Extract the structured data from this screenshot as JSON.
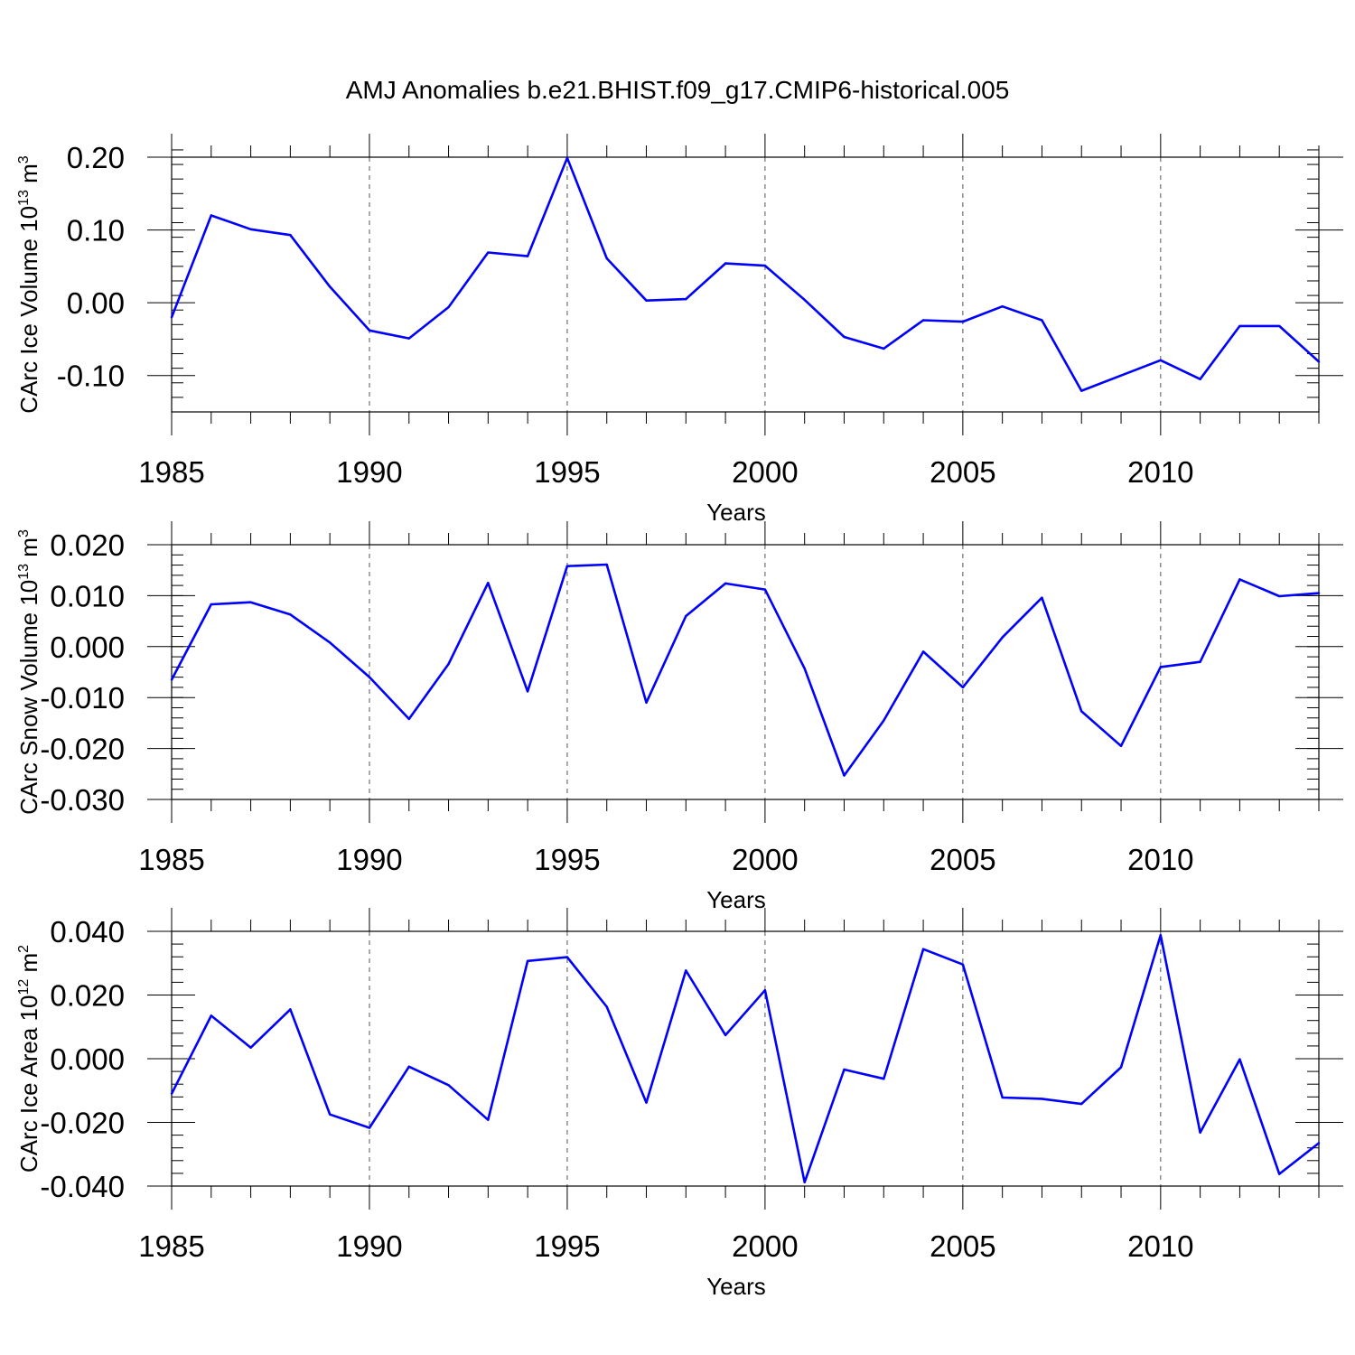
{
  "title": "AMJ Anomalies b.e21.BHIST.f09_g17.CMIP6-historical.005",
  "line_color": "#0000ff",
  "chart_data": [
    {
      "type": "line",
      "title": "",
      "xlabel": "Years",
      "ylabel": "CArc Ice Volume 10",
      "ylabel_exp": "13",
      "ylabel_unit": " m",
      "ylabel_unit_exp": "3",
      "xlim": [
        1985,
        2014
      ],
      "ylim": [
        -0.15,
        0.2
      ],
      "x_ticks": [
        1985,
        1990,
        1995,
        2000,
        2005,
        2010
      ],
      "x_tick_labels": [
        "1985",
        "1990",
        "1995",
        "2000",
        "2005",
        "2010"
      ],
      "y_ticks": [
        -0.1,
        0.0,
        0.1,
        0.2
      ],
      "y_tick_labels": [
        "-0.10",
        "0.00",
        "0.10",
        "0.20"
      ],
      "y_minor_step": 0.02,
      "grid": "vertical dashed at major x ticks",
      "series": [
        {
          "name": "CArc Ice Volume",
          "x": [
            1985,
            1986,
            1987,
            1988,
            1989,
            1990,
            1991,
            1992,
            1993,
            1994,
            1995,
            1996,
            1997,
            1998,
            1999,
            2000,
            2001,
            2002,
            2003,
            2004,
            2005,
            2006,
            2007,
            2008,
            2009,
            2010,
            2011,
            2012,
            2013,
            2014
          ],
          "values": [
            -0.02,
            0.12,
            0.101,
            0.093,
            0.022,
            -0.038,
            -0.049,
            -0.006,
            0.069,
            0.064,
            0.199,
            0.061,
            0.003,
            0.005,
            0.054,
            0.051,
            0.004,
            -0.047,
            -0.063,
            -0.024,
            -0.026,
            -0.005,
            -0.024,
            -0.121,
            -0.1,
            -0.079,
            -0.105,
            -0.032,
            -0.032,
            -0.081
          ]
        }
      ]
    },
    {
      "type": "line",
      "title": "",
      "xlabel": "Years",
      "ylabel": "CArc Snow Volume 10",
      "ylabel_exp": "13",
      "ylabel_unit": " m",
      "ylabel_unit_exp": "3",
      "xlim": [
        1985,
        2014
      ],
      "ylim": [
        -0.03,
        0.02
      ],
      "x_ticks": [
        1985,
        1990,
        1995,
        2000,
        2005,
        2010
      ],
      "x_tick_labels": [
        "1985",
        "1990",
        "1995",
        "2000",
        "2005",
        "2010"
      ],
      "y_ticks": [
        -0.03,
        -0.02,
        -0.01,
        0.0,
        0.01,
        0.02
      ],
      "y_tick_labels": [
        "-0.030",
        "-0.020",
        "-0.010",
        "0.000",
        "0.010",
        "0.020"
      ],
      "y_minor_step": 0.002,
      "grid": "vertical dashed at major x ticks",
      "series": [
        {
          "name": "CArc Snow Volume",
          "x": [
            1985,
            1986,
            1987,
            1988,
            1989,
            1990,
            1991,
            1992,
            1993,
            1994,
            1995,
            1996,
            1997,
            1998,
            1999,
            2000,
            2001,
            2002,
            2003,
            2004,
            2005,
            2006,
            2007,
            2008,
            2009,
            2010,
            2011,
            2012,
            2013,
            2014
          ],
          "values": [
            -0.0065,
            0.0083,
            0.0087,
            0.0063,
            0.0008,
            -0.006,
            -0.0142,
            -0.0034,
            0.0125,
            -0.0088,
            0.0158,
            0.0161,
            -0.011,
            0.006,
            0.0124,
            0.0112,
            -0.0043,
            -0.0253,
            -0.0145,
            -0.001,
            -0.008,
            0.0018,
            0.0096,
            -0.0127,
            -0.0195,
            -0.004,
            -0.003,
            0.0132,
            0.0099,
            0.0105
          ]
        }
      ]
    },
    {
      "type": "line",
      "title": "",
      "xlabel": "Years",
      "ylabel": "CArc Ice Area 10",
      "ylabel_exp": "12",
      "ylabel_unit": " m",
      "ylabel_unit_exp": "2",
      "xlim": [
        1985,
        2014
      ],
      "ylim": [
        -0.04,
        0.04
      ],
      "x_ticks": [
        1985,
        1990,
        1995,
        2000,
        2005,
        2010
      ],
      "x_tick_labels": [
        "1985",
        "1990",
        "1995",
        "2000",
        "2005",
        "2010"
      ],
      "y_ticks": [
        -0.04,
        -0.02,
        0.0,
        0.02,
        0.04
      ],
      "y_tick_labels": [
        "-0.040",
        "-0.020",
        "0.000",
        "0.020",
        "0.040"
      ],
      "y_minor_step": 0.004,
      "grid": "vertical dashed at major x ticks",
      "series": [
        {
          "name": "CArc Ice Area",
          "x": [
            1985,
            1986,
            1987,
            1988,
            1989,
            1990,
            1991,
            1992,
            1993,
            1994,
            1995,
            1996,
            1997,
            1998,
            1999,
            2000,
            2001,
            2002,
            2003,
            2004,
            2005,
            2006,
            2007,
            2008,
            2009,
            2010,
            2011,
            2012,
            2013,
            2014
          ],
          "values": [
            -0.011,
            0.0135,
            0.0035,
            0.0155,
            -0.0175,
            -0.0217,
            -0.0025,
            -0.0083,
            -0.0192,
            0.0307,
            0.0319,
            0.0163,
            -0.0138,
            0.0277,
            0.0074,
            0.0215,
            -0.0388,
            -0.0034,
            -0.0063,
            0.0344,
            0.0296,
            -0.0122,
            -0.0126,
            -0.0142,
            -0.0027,
            0.0388,
            -0.0232,
            -0.0002,
            -0.0362,
            -0.0265
          ]
        }
      ]
    }
  ]
}
